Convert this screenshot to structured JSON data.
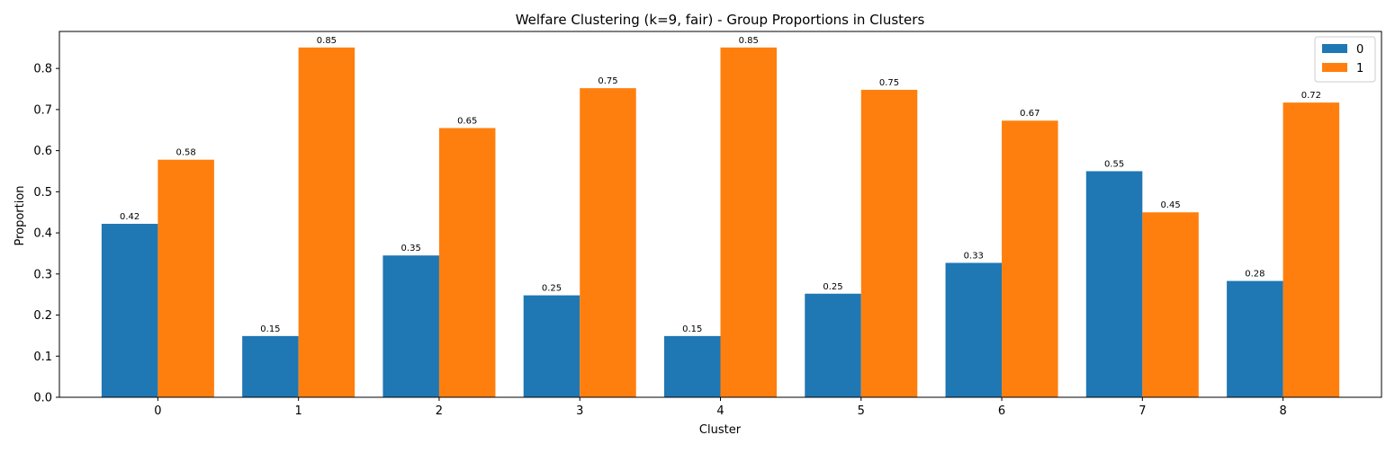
{
  "chart_data": {
    "type": "bar",
    "title": "Welfare Clustering (k=9, fair) - Group Proportions in Clusters",
    "xlabel": "Cluster",
    "ylabel": "Proportion",
    "categories": [
      "0",
      "1",
      "2",
      "3",
      "4",
      "5",
      "6",
      "7",
      "8"
    ],
    "ylim": [
      0,
      0.89
    ],
    "yticks": [
      0.0,
      0.1,
      0.2,
      0.3,
      0.4,
      0.5,
      0.6,
      0.7,
      0.8
    ],
    "grid": false,
    "legend_position": "top-right",
    "series": [
      {
        "name": "0",
        "color": "#1f77b4",
        "values": [
          0.422,
          0.149,
          0.345,
          0.248,
          0.149,
          0.252,
          0.327,
          0.55,
          0.283
        ],
        "labels": [
          "0.42",
          "0.15",
          "0.35",
          "0.25",
          "0.15",
          "0.25",
          "0.33",
          "0.55",
          "0.28"
        ]
      },
      {
        "name": "1",
        "color": "#ff7f0e",
        "values": [
          0.578,
          0.851,
          0.655,
          0.752,
          0.851,
          0.748,
          0.673,
          0.45,
          0.717
        ],
        "labels": [
          "0.58",
          "0.85",
          "0.65",
          "0.75",
          "0.85",
          "0.75",
          "0.67",
          "0.45",
          "0.72"
        ]
      }
    ]
  }
}
